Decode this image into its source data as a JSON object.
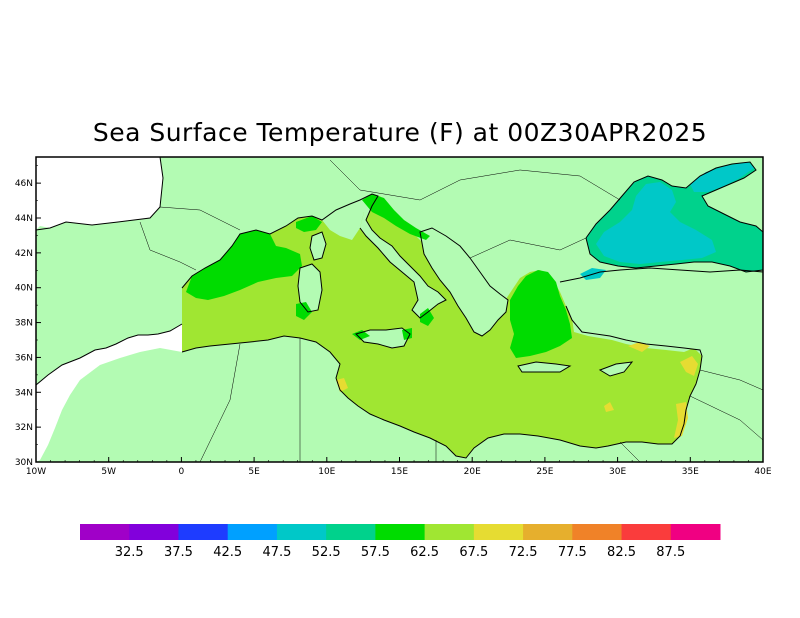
{
  "title": "Sea Surface Temperature (F) at 00Z30APR2025",
  "map": {
    "lon_labels": [
      "10W",
      "5W",
      "0",
      "5E",
      "10E",
      "15E",
      "20E",
      "25E",
      "30E",
      "35E",
      "40E"
    ],
    "lat_labels": [
      "30N",
      "32N",
      "34N",
      "36N",
      "38N",
      "40N",
      "42N",
      "44N",
      "46N"
    ],
    "lon_range": [
      -10,
      40
    ],
    "lat_range": [
      30,
      47.5
    ],
    "colors": {
      "land": "#b3fbb3",
      "coast": "#000000"
    }
  },
  "colorbar": {
    "colors": [
      "#a000c8",
      "#8200dc",
      "#1e3cff",
      "#00a0ff",
      "#00c8c8",
      "#00d28c",
      "#00dc00",
      "#a0e632",
      "#e6dc32",
      "#e6af2d",
      "#f08228",
      "#fa3c3c",
      "#f00082"
    ],
    "labels": [
      "32.5",
      "37.5",
      "42.5",
      "47.5",
      "52.5",
      "57.5",
      "62.5",
      "67.5",
      "72.5",
      "77.5",
      "82.5",
      "87.5"
    ]
  }
}
